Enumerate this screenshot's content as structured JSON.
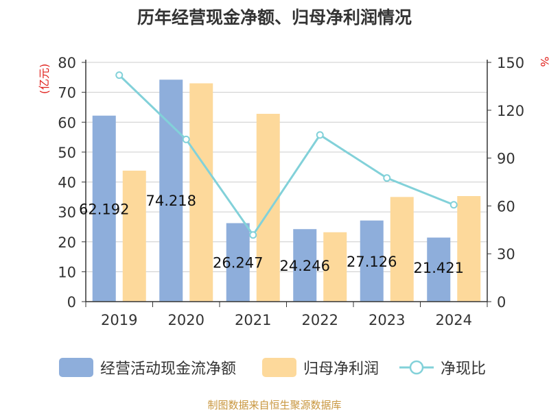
{
  "title": "历年经营现金净额、归母净利润情况",
  "source": "制图数据来自恒生聚源数据库",
  "chart_data": {
    "type": "bar",
    "categories": [
      "2019",
      "2020",
      "2021",
      "2022",
      "2023",
      "2024"
    ],
    "series": [
      {
        "name": "经营活动现金流净额",
        "type": "bar",
        "axis": "left",
        "color": "#8eaedb",
        "values": [
          62.192,
          74.218,
          26.247,
          24.246,
          27.126,
          21.421
        ],
        "labels": [
          "62.192",
          "74.218",
          "26.247",
          "24.246",
          "27.126",
          "21.421"
        ]
      },
      {
        "name": "归母净利润",
        "type": "bar",
        "axis": "left",
        "color": "#fdd99b",
        "values": [
          43.8,
          73.0,
          62.8,
          23.2,
          35.0,
          35.3
        ]
      },
      {
        "name": "净现比",
        "type": "line",
        "axis": "right",
        "color": "#82d1d9",
        "values": [
          142.0,
          101.7,
          41.8,
          104.5,
          77.5,
          60.7
        ]
      }
    ],
    "ylabel_left": "(亿元)",
    "ylabel_right": "%",
    "ylim_left": [
      0,
      80
    ],
    "yticks_left": [
      "0",
      "10",
      "20",
      "30",
      "40",
      "50",
      "60",
      "70",
      "80"
    ],
    "ylim_right": [
      0,
      150
    ],
    "yticks_right": [
      "0",
      "30",
      "60",
      "90",
      "120",
      "150"
    ],
    "grid": true,
    "legend_position": "bottom"
  }
}
